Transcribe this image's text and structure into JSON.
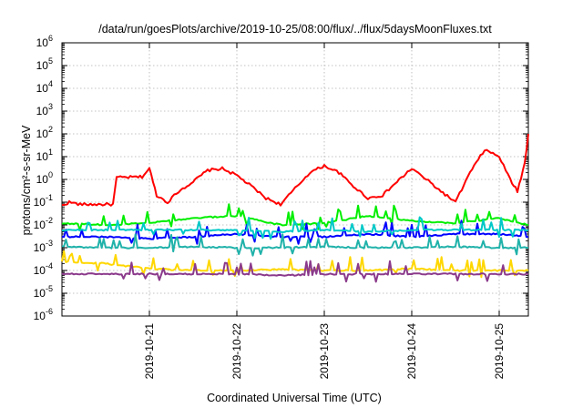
{
  "chart_data": {
    "type": "line",
    "title": "/data/run/goesPlots/archive/2019-10-25/08:00/flux/../flux/5daysMoonFluxes.txt",
    "xlabel": "Coordinated Universal Time (UTC)",
    "ylabel": "protons/cm²-s-sr-MeV",
    "y_scale": "log",
    "ylim": [
      1e-06,
      1000000.0
    ],
    "xlim": [
      "2019-10-20 00:00",
      "2019-10-25 08:00"
    ],
    "grid": true,
    "x_ticks": [
      "2019-10-21",
      "2019-10-22",
      "2019-10-23",
      "2019-10-24",
      "2019-10-25"
    ],
    "y_ticks": [
      {
        "base": "10",
        "exp": "-6"
      },
      {
        "base": "10",
        "exp": "-5"
      },
      {
        "base": "10",
        "exp": "-4"
      },
      {
        "base": "10",
        "exp": "-3"
      },
      {
        "base": "10",
        "exp": "-2"
      },
      {
        "base": "10",
        "exp": "-1"
      },
      {
        "base": "10",
        "exp": "0"
      },
      {
        "base": "10",
        "exp": "1"
      },
      {
        "base": "10",
        "exp": "2"
      },
      {
        "base": "10",
        "exp": "3"
      },
      {
        "base": "10",
        "exp": "4"
      },
      {
        "base": "10",
        "exp": "5"
      },
      {
        "base": "10",
        "exp": "6"
      }
    ],
    "series": [
      {
        "color": "#ff0000",
        "x": [
          "2019-10-20 00:00",
          "2019-10-20 02:00",
          "2019-10-20 05:00",
          "2019-10-20 14:00",
          "2019-10-20 15:00",
          "2019-10-20 22:00",
          "2019-10-21 00:00",
          "2019-10-21 02:00",
          "2019-10-21 05:00",
          "2019-10-21 08:00",
          "2019-10-21 12:00",
          "2019-10-21 16:00",
          "2019-10-21 20:00",
          "2019-10-22 00:00",
          "2019-10-22 04:00",
          "2019-10-22 08:00",
          "2019-10-22 12:00",
          "2019-10-22 16:00",
          "2019-10-22 20:00",
          "2019-10-23 00:00",
          "2019-10-23 04:00",
          "2019-10-23 08:00",
          "2019-10-23 12:00",
          "2019-10-23 16:00",
          "2019-10-23 20:00",
          "2019-10-24 00:00",
          "2019-10-24 04:00",
          "2019-10-24 08:00",
          "2019-10-24 12:00",
          "2019-10-24 16:00",
          "2019-10-24 20:00",
          "2019-10-25 00:00",
          "2019-10-25 03:00",
          "2019-10-25 05:00",
          "2019-10-25 07:00",
          "2019-10-25 08:00"
        ],
        "y": [
          0.07,
          0.1,
          0.08,
          0.08,
          1.2,
          1.3,
          3,
          0.2,
          0.1,
          0.3,
          0.8,
          2.5,
          3,
          1.5,
          0.5,
          0.15,
          0.08,
          0.4,
          2,
          4,
          2,
          0.5,
          0.15,
          0.2,
          0.8,
          3,
          1,
          0.3,
          0.1,
          2,
          20,
          10,
          1,
          0.3,
          5,
          100
        ]
      },
      {
        "color": "#00ee00",
        "x": [
          "2019-10-20 00:00",
          "2019-10-20 12:00",
          "2019-10-21 00:00",
          "2019-10-21 12:00",
          "2019-10-22 00:00",
          "2019-10-22 12:00",
          "2019-10-23 00:00",
          "2019-10-23 12:00",
          "2019-10-24 00:00",
          "2019-10-24 12:00",
          "2019-10-25 00:00",
          "2019-10-25 08:00"
        ],
        "y": [
          0.012,
          0.01,
          0.012,
          0.02,
          0.025,
          0.01,
          0.012,
          0.025,
          0.015,
          0.012,
          0.02,
          0.01
        ]
      },
      {
        "color": "#0000ff",
        "x": [
          "2019-10-20 00:00",
          "2019-10-20 12:00",
          "2019-10-21 00:00",
          "2019-10-21 12:00",
          "2019-10-22 00:00",
          "2019-10-22 12:00",
          "2019-10-23 00:00",
          "2019-10-23 12:00",
          "2019-10-24 00:00",
          "2019-10-24 12:00",
          "2019-10-25 00:00",
          "2019-10-25 08:00"
        ],
        "y": [
          0.003,
          0.003,
          0.0025,
          0.003,
          0.004,
          0.003,
          0.003,
          0.004,
          0.003,
          0.004,
          0.004,
          0.003
        ]
      },
      {
        "color": "#00c8c8",
        "x": [
          "2019-10-20 00:00",
          "2019-10-20 12:00",
          "2019-10-21 00:00",
          "2019-10-21 12:00",
          "2019-10-22 00:00",
          "2019-10-22 12:00",
          "2019-10-23 00:00",
          "2019-10-23 12:00",
          "2019-10-24 00:00",
          "2019-10-24 12:00",
          "2019-10-25 00:00",
          "2019-10-25 08:00"
        ],
        "y": [
          0.006,
          0.006,
          0.006,
          0.006,
          0.006,
          0.005,
          0.006,
          0.005,
          0.006,
          0.006,
          0.006,
          0.006
        ]
      },
      {
        "color": "#20b2aa",
        "x": [
          "2019-10-20 00:00",
          "2019-10-20 12:00",
          "2019-10-21 00:00",
          "2019-10-21 12:00",
          "2019-10-22 00:00",
          "2019-10-22 12:00",
          "2019-10-23 00:00",
          "2019-10-23 12:00",
          "2019-10-24 00:00",
          "2019-10-24 12:00",
          "2019-10-25 00:00",
          "2019-10-25 08:00"
        ],
        "y": [
          0.0011,
          0.001,
          0.001,
          0.0011,
          0.001,
          0.001,
          0.0011,
          0.001,
          0.001,
          0.0011,
          0.001,
          0.001
        ]
      },
      {
        "color": "#ffd700",
        "x": [
          "2019-10-20 00:00",
          "2019-10-20 12:00",
          "2019-10-21 00:00",
          "2019-10-21 12:00",
          "2019-10-22 00:00",
          "2019-10-22 12:00",
          "2019-10-23 00:00",
          "2019-10-23 12:00",
          "2019-10-24 00:00",
          "2019-10-24 12:00",
          "2019-10-25 00:00",
          "2019-10-25 08:00"
        ],
        "y": [
          0.00025,
          0.0002,
          0.00012,
          0.0001,
          0.0001,
          0.00011,
          0.0001,
          0.0001,
          0.00012,
          0.0001,
          0.0001,
          0.0001
        ]
      },
      {
        "color": "#8b3a8b",
        "x": [
          "2019-10-20 00:00",
          "2019-10-20 12:00",
          "2019-10-21 00:00",
          "2019-10-21 12:00",
          "2019-10-22 00:00",
          "2019-10-22 12:00",
          "2019-10-23 00:00",
          "2019-10-23 12:00",
          "2019-10-24 00:00",
          "2019-10-24 12:00",
          "2019-10-25 00:00",
          "2019-10-25 08:00"
        ],
        "y": [
          7e-05,
          7e-05,
          7e-05,
          7e-05,
          7e-05,
          6e-05,
          7e-05,
          7e-05,
          7e-05,
          7e-05,
          7e-05,
          7e-05
        ]
      }
    ]
  }
}
